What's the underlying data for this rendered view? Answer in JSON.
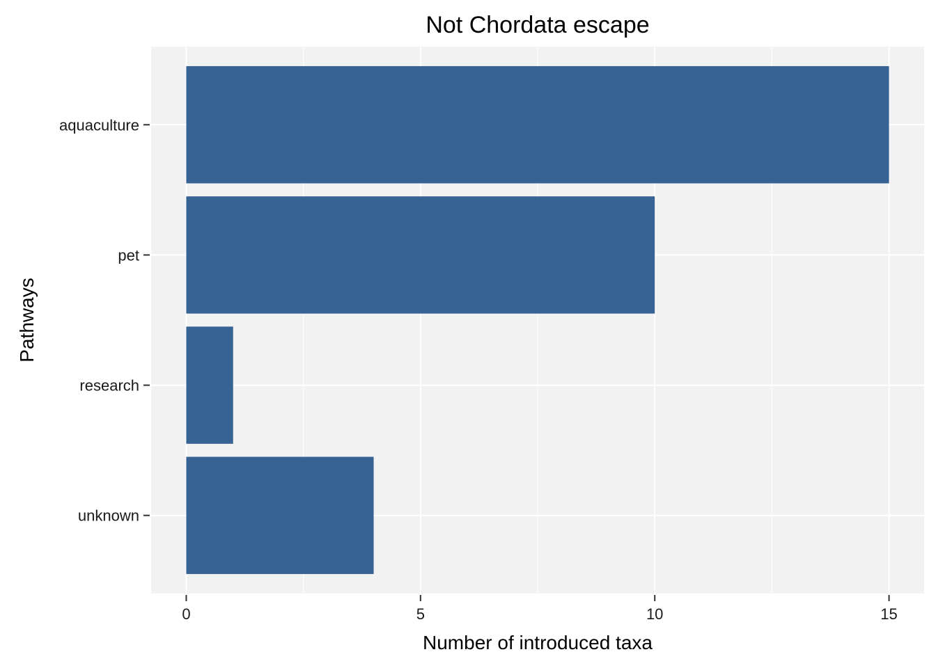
{
  "chart_data": {
    "type": "bar",
    "orientation": "horizontal",
    "title": "Not Chordata escape",
    "xlabel": "Number of introduced taxa",
    "ylabel": "Pathways",
    "categories": [
      "aquaculture",
      "pet",
      "research",
      "unknown"
    ],
    "values": [
      15,
      10,
      1,
      4
    ],
    "xlim": [
      -0.75,
      15.75
    ],
    "xticks": [
      0,
      5,
      10,
      15
    ],
    "grid": true,
    "legend": "none",
    "colors": {
      "bar": "#376294",
      "panel_background": "#f2f2f2",
      "grid": "#ffffff"
    }
  }
}
